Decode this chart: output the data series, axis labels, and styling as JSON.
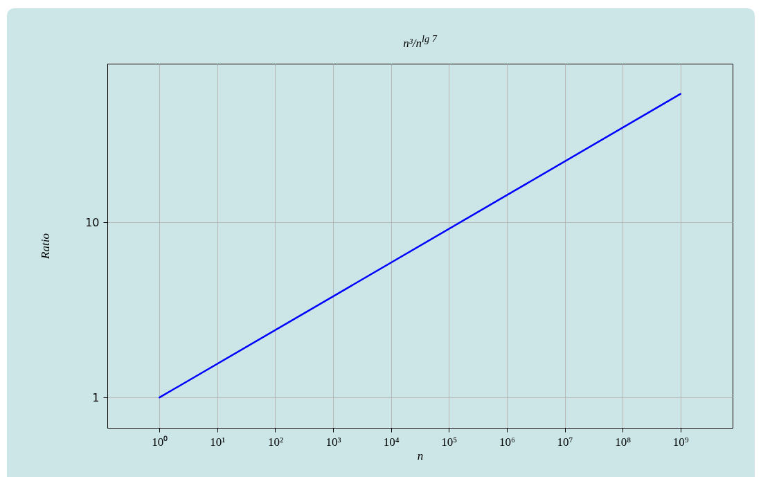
{
  "chart_data": {
    "type": "line",
    "title": "n³/n$^{lg 7}$",
    "xlabel": "n",
    "ylabel": "Ratio",
    "x": [
      1,
      1000,
      1000000,
      1000000000
    ],
    "series": [
      {
        "color": "#0000ff",
        "values": [
          1,
          3.78,
          14.3,
          54.2
        ]
      }
    ],
    "log": "xy",
    "grid": true,
    "marker": "none",
    "line_style": "solid",
    "xlim": [
      0.1259,
      7943000000
    ],
    "ylim": [
      0.671,
      80.6
    ],
    "xticks": [
      {
        "value": 1,
        "label": "10⁰"
      },
      {
        "value": 10,
        "label": "10¹"
      },
      {
        "value": 100,
        "label": "10²"
      },
      {
        "value": 1000,
        "label": "10³"
      },
      {
        "value": 10000,
        "label": "10⁴"
      },
      {
        "value": 100000,
        "label": "10⁵"
      },
      {
        "value": 1000000,
        "label": "10⁶"
      },
      {
        "value": 10000000,
        "label": "10⁷"
      },
      {
        "value": 100000000,
        "label": "10⁸"
      },
      {
        "value": 1000000000,
        "label": "10⁹"
      }
    ],
    "yticks": [
      1,
      10
    ]
  }
}
